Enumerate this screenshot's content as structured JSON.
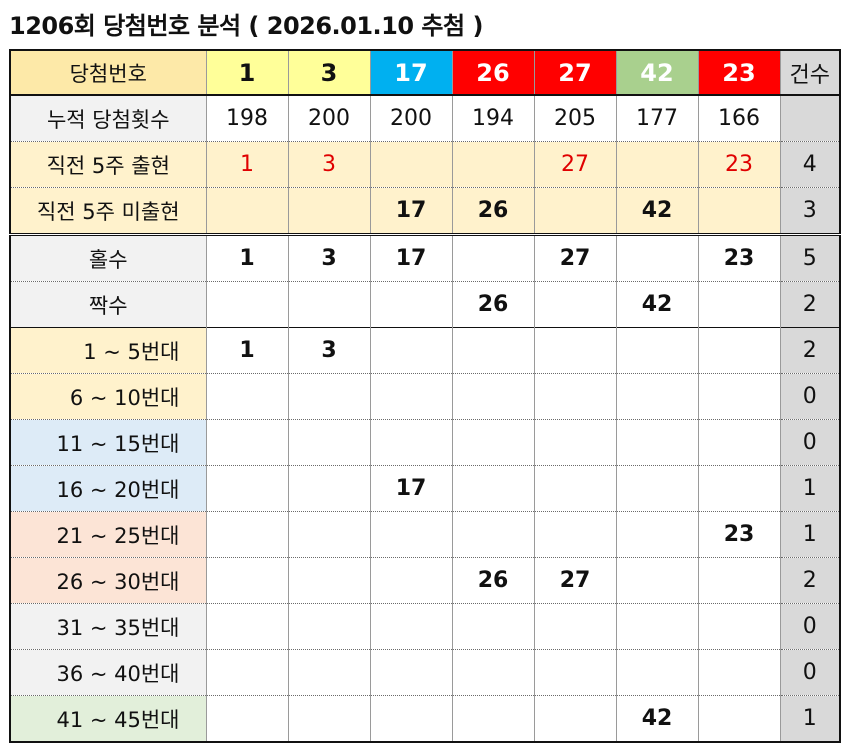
{
  "title": "1206회 당첨번호 분석 ( 2026.01.10 추첨 )",
  "header": {
    "label": "당첨번호",
    "numbers": [
      "1",
      "3",
      "17",
      "26",
      "27",
      "42",
      "23"
    ],
    "count_label": "건수"
  },
  "rows": {
    "cumulative": {
      "label": "누적 당첨횟수",
      "values": [
        "198",
        "200",
        "200",
        "194",
        "205",
        "177",
        "166"
      ],
      "count": ""
    },
    "recent5_appeared": {
      "label": "직전 5주 출현",
      "values": [
        "1",
        "3",
        "",
        "",
        "27",
        "",
        "23"
      ],
      "count": "4"
    },
    "recent5_not": {
      "label": "직전 5주 미출현",
      "values": [
        "",
        "",
        "17",
        "26",
        "",
        "42",
        ""
      ],
      "count": "3"
    },
    "odd": {
      "label": "홀수",
      "values": [
        "1",
        "3",
        "17",
        "",
        "27",
        "",
        "23"
      ],
      "count": "5"
    },
    "even": {
      "label": "짝수",
      "values": [
        "",
        "",
        "",
        "26",
        "",
        "42",
        ""
      ],
      "count": "2"
    },
    "ranges": [
      {
        "label": "1 ~ 5번대",
        "values": [
          "1",
          "3",
          "",
          "",
          "",
          "",
          ""
        ],
        "count": "2"
      },
      {
        "label": "6 ~ 10번대",
        "values": [
          "",
          "",
          "",
          "",
          "",
          "",
          ""
        ],
        "count": "0"
      },
      {
        "label": "11 ~ 15번대",
        "values": [
          "",
          "",
          "",
          "",
          "",
          "",
          ""
        ],
        "count": "0"
      },
      {
        "label": "16 ~ 20번대",
        "values": [
          "",
          "",
          "17",
          "",
          "",
          "",
          ""
        ],
        "count": "1"
      },
      {
        "label": "21 ~ 25번대",
        "values": [
          "",
          "",
          "",
          "",
          "",
          "",
          "23"
        ],
        "count": "1"
      },
      {
        "label": "26 ~ 30번대",
        "values": [
          "",
          "",
          "",
          "26",
          "27",
          "",
          ""
        ],
        "count": "2"
      },
      {
        "label": "31 ~ 35번대",
        "values": [
          "",
          "",
          "",
          "",
          "",
          "",
          ""
        ],
        "count": "0"
      },
      {
        "label": "36 ~ 40번대",
        "values": [
          "",
          "",
          "",
          "",
          "",
          "",
          ""
        ],
        "count": "0"
      },
      {
        "label": "41 ~ 45번대",
        "values": [
          "",
          "",
          "",
          "",
          "",
          "42",
          ""
        ],
        "count": "1"
      }
    ]
  },
  "colors": {
    "ball_1_10": "#ffff99",
    "ball_11_20": "#00b0f0",
    "ball_21_30": "#ff0000",
    "ball_41_45": "#a9d08e",
    "recent_bg": "#fff2cc",
    "range_1_10_bg": "#fff2cc",
    "range_11_20_bg": "#ddebf7",
    "range_21_30_bg": "#fce4d6",
    "range_31_40_bg": "#f2f2f2",
    "range_41_45_bg": "#e2efda",
    "count_bg": "#d9d9d9",
    "red_text": "#e00000"
  }
}
